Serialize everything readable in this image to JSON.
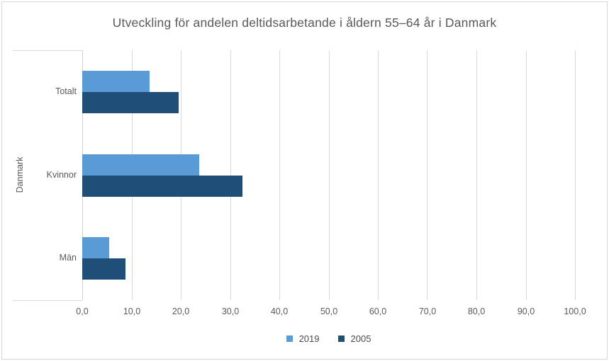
{
  "chart_data": {
    "type": "bar",
    "orientation": "horizontal",
    "title": "Utveckling för andelen deltidsarbetande i åldern 55–64 år i Danmark",
    "group_label": "Danmark",
    "categories": [
      "Totalt",
      "Kvinnor",
      "Män"
    ],
    "series": [
      {
        "name": "2019",
        "color": "#5B9BD5",
        "values": [
          13.7,
          23.8,
          5.4
        ]
      },
      {
        "name": "2005",
        "color": "#1F4E79",
        "values": [
          19.5,
          32.5,
          8.8
        ]
      }
    ],
    "xlim": [
      0,
      100
    ],
    "x_tick_step": 10,
    "x_tick_labels": [
      "0,0",
      "10,0",
      "20,0",
      "30,0",
      "40,0",
      "50,0",
      "60,0",
      "70,0",
      "80,0",
      "90,0",
      "100,0"
    ],
    "grid": true,
    "legend_position": "bottom-center",
    "colors": {
      "gridline": "#d9d9d9",
      "text": "#595959",
      "border": "#d7d7d7"
    }
  }
}
